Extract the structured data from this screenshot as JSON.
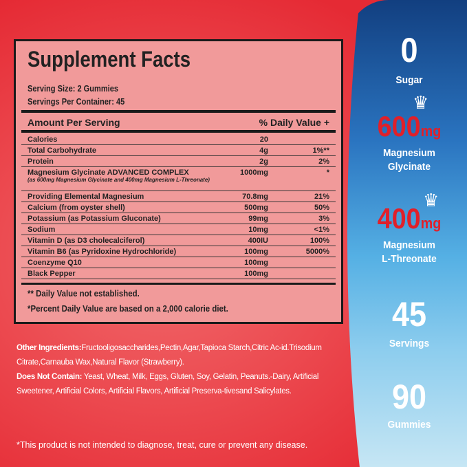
{
  "facts": {
    "title": "Supplement Facts",
    "serving_size": "Serving Size: 2 Gummies",
    "servings_per_container": "Servings Per Container: 45",
    "header_amount": "Amount Per Serving",
    "header_dv": "% Daily Value +",
    "rows": [
      {
        "name": "Calories",
        "amount": "20",
        "dv": ""
      },
      {
        "name": "Total Carbohydrate",
        "amount": "4g",
        "dv": "1%**"
      },
      {
        "name": "Protein",
        "amount": "2g",
        "dv": "2%"
      },
      {
        "name": "Magnesium Glycinate ADVANCED COMPLEX",
        "sub": "(as 600mg Magnesium Glycinate and 400mg Magnesium L-Threonate)",
        "amount": "1000mg",
        "dv": "*"
      },
      {
        "name": "Providing Elemental Magnesium",
        "amount": "70.8mg",
        "dv": "21%"
      },
      {
        "name": "Calcium (from oyster shell)",
        "amount": "500mg",
        "dv": "50%"
      },
      {
        "name": "Potassium (as Potassium Gluconate)",
        "amount": "99mg",
        "dv": "3%"
      },
      {
        "name": "Sodium",
        "amount": "10mg",
        "dv": "<1%"
      },
      {
        "name": "Vitamin D (as D3 cholecalciferol)",
        "amount": "400IU",
        "dv": "100%"
      },
      {
        "name": "Vitamin B6 (as Pyridoxine Hydrochloride)",
        "amount": "100mg",
        "dv": "5000%"
      },
      {
        "name": "Coenzyme Q10",
        "amount": "100mg",
        "dv": ""
      },
      {
        "name": "Black Pepper",
        "amount": "100mg",
        "dv": ""
      }
    ],
    "footnote1": "** Daily Value not established.",
    "footnote2": "*Percent Daily Value are based on a 2,000 calorie diet."
  },
  "ingredients": {
    "other_label": "Other Ingredients:",
    "other_text": "Fructooligosaccharides,Pectin,Agar,Tapioca Starch,Citric Ac-id.Trisodium Citrate,Carnauba Wax,Natural Flavor (Strawberry).",
    "not_contain_label": "Does Not Contain:",
    "not_contain_text": " Yeast, Wheat, Milk, Eggs, Gluten, Soy, Gelatin, Peanuts.-Dairy, Artificial Sweetener, Artificial Colors, Artificial Flavors, Artificial Preserva-tivesand Salicylates."
  },
  "disclaimer": "*This product is not intended to diagnose, treat, cure or prevent any disease.",
  "highlights": {
    "sugar_value": "0",
    "sugar_label": "Sugar",
    "glycinate_value": "600",
    "glycinate_unit": "mg",
    "glycinate_label1": "Magnesium",
    "glycinate_label2": "Glycinate",
    "threonate_value": "400",
    "threonate_unit": "mg",
    "threonate_label1": "Magnesium",
    "threonate_label2": "L-Threonate",
    "servings_value": "45",
    "servings_label": "Servings",
    "gummies_value": "90",
    "gummies_label": "Gummies"
  },
  "colors": {
    "red": "#e8303a",
    "panel": "#f19a9a",
    "blue_top": "#123f80",
    "blue_bottom": "#c6e6f4",
    "accent_red": "#e0202a"
  }
}
